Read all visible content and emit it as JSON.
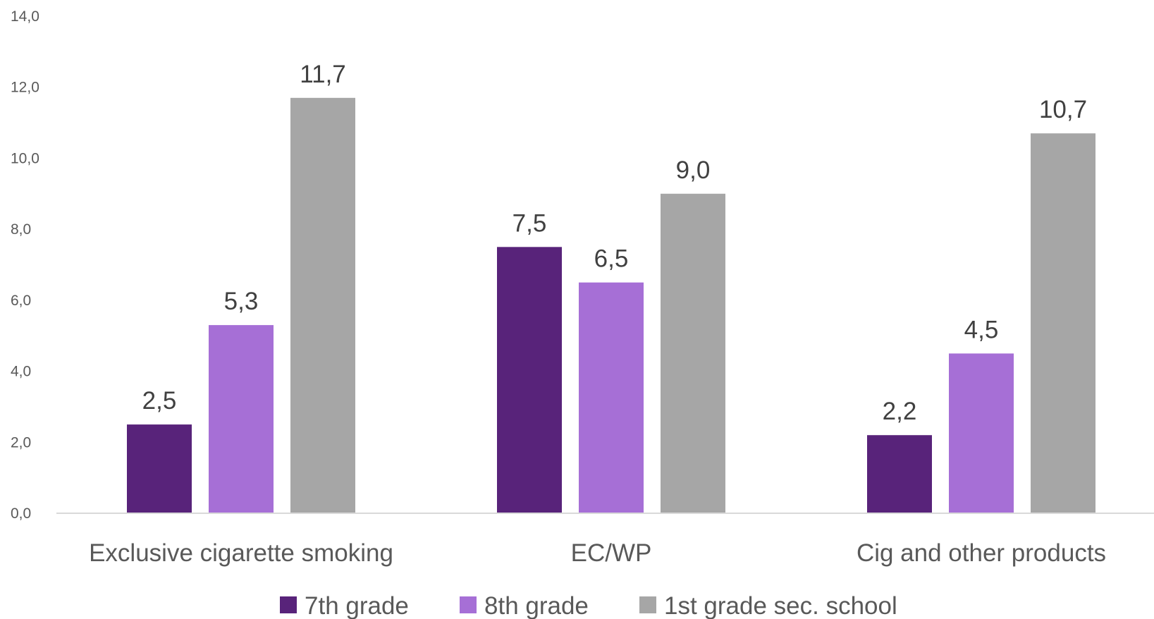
{
  "chart_data": {
    "type": "bar",
    "categories": [
      "Exclusive cigarette smoking",
      "EC/WP",
      "Cig and other products"
    ],
    "series": [
      {
        "name": "7th grade",
        "values": [
          2.5,
          7.5,
          2.2
        ],
        "labels": [
          "2,5",
          "7,5",
          "2,2"
        ],
        "color": "#58237a"
      },
      {
        "name": "8th grade",
        "values": [
          5.3,
          6.5,
          4.5
        ],
        "labels": [
          "5,3",
          "6,5",
          "4,5"
        ],
        "color": "#a66fd6"
      },
      {
        "name": "1st grade sec. school",
        "values": [
          11.7,
          9.0,
          10.7
        ],
        "labels": [
          "11,7",
          "9,0",
          "10,7"
        ],
        "color": "#a6a6a6"
      }
    ],
    "ylim": [
      0,
      14
    ],
    "yticks": [
      0,
      2,
      4,
      6,
      8,
      10,
      12,
      14
    ],
    "ytick_labels": [
      "0,0",
      "2,0",
      "4,0",
      "6,0",
      "8,0",
      "10,0",
      "12,0",
      "14,0"
    ],
    "grid": false,
    "legend_position": "bottom",
    "axis_color": "#d9d9d9"
  }
}
